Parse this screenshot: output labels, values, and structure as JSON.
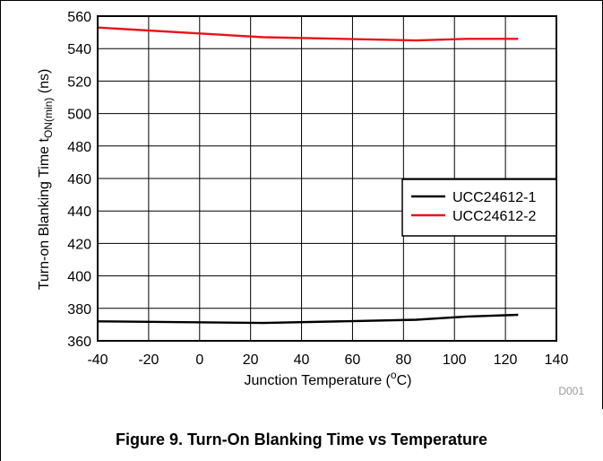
{
  "chart_data": {
    "type": "line",
    "title": "",
    "xlabel_main": "Junction Temperature (",
    "xlabel_sup": "o",
    "xlabel_end": "C)",
    "ylabel_main": "Turn-on Blanking Time t",
    "ylabel_sub": "ON(min)",
    "ylabel_end": " (ns)",
    "xlim": [
      -40,
      140
    ],
    "ylim": [
      360,
      560
    ],
    "xticks": [
      -40,
      -20,
      0,
      20,
      40,
      60,
      80,
      100,
      120,
      140
    ],
    "yticks": [
      360,
      380,
      400,
      420,
      440,
      460,
      480,
      500,
      520,
      540,
      560
    ],
    "grid": true,
    "legend_position": "right",
    "series": [
      {
        "name": "UCC24612-1",
        "color": "#000000",
        "x": [
          -40,
          25,
          85,
          105,
          125
        ],
        "y": [
          372,
          371,
          373,
          375,
          376
        ]
      },
      {
        "name": "UCC24612-2",
        "color": "#e8141b",
        "x": [
          -40,
          25,
          85,
          105,
          125
        ],
        "y": [
          553,
          547,
          545,
          546,
          546
        ]
      }
    ],
    "figure_id": "D001"
  },
  "caption": "Figure 9. Turn-On Blanking Time vs Temperature"
}
